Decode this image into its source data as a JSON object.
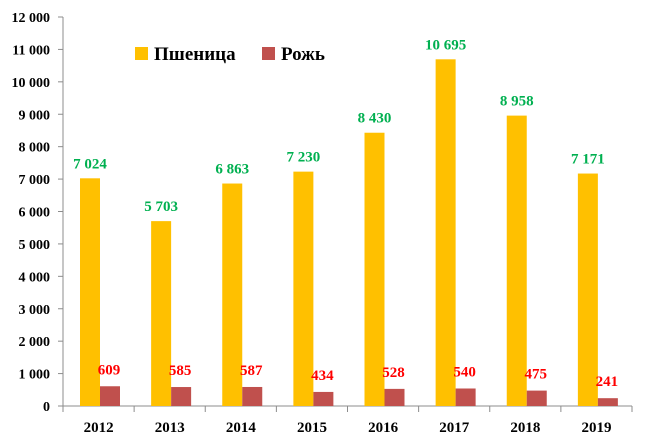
{
  "chart_data": {
    "type": "bar",
    "title": "",
    "xlabel": "",
    "ylabel": "",
    "categories": [
      "2012",
      "2013",
      "2014",
      "2015",
      "2016",
      "2017",
      "2018",
      "2019"
    ],
    "series": [
      {
        "name": "Пшеница",
        "color": "#FFC000",
        "label_color": "#00B050",
        "values": [
          7024,
          5703,
          6863,
          7230,
          8430,
          10695,
          8958,
          7171
        ],
        "labels": [
          "7 024",
          "5 703",
          "6 863",
          "7 230",
          "8 430",
          "10 695",
          "8 958",
          "7 171"
        ]
      },
      {
        "name": "Рожь",
        "color": "#C0504D",
        "label_color": "#FF0000",
        "values": [
          609,
          585,
          587,
          434,
          528,
          540,
          475,
          241
        ],
        "labels": [
          "609",
          "585",
          "587",
          "434",
          "528",
          "540",
          "475",
          "241"
        ]
      }
    ],
    "ylim": [
      0,
      12000
    ],
    "yticks": [
      0,
      1000,
      2000,
      3000,
      4000,
      5000,
      6000,
      7000,
      8000,
      9000,
      10000,
      11000,
      12000
    ],
    "ytick_labels": [
      "0",
      "1 000",
      "2 000",
      "3 000",
      "4 000",
      "5 000",
      "6 000",
      "7 000",
      "8 000",
      "9 000",
      "10 000",
      "11 000",
      "12 000"
    ],
    "grid": false,
    "legend_position": "top-left"
  }
}
